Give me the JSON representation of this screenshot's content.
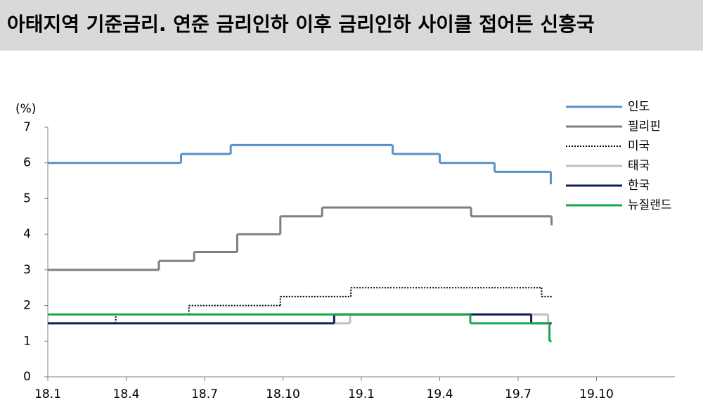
{
  "chart_data": {
    "type": "step",
    "title": "아태지역 기준금리. 연준 금리인하 이후 금리인하 사이클 접어든 신흥국",
    "y_label": "(%)",
    "xlim": [
      0,
      24
    ],
    "xticks": [
      {
        "value": 0,
        "label": "18.1"
      },
      {
        "value": 3,
        "label": "18.4"
      },
      {
        "value": 6,
        "label": "18.7"
      },
      {
        "value": 9,
        "label": "18.10"
      },
      {
        "value": 12,
        "label": "19.1"
      },
      {
        "value": 15,
        "label": "19.4"
      },
      {
        "value": 18,
        "label": "19.7"
      },
      {
        "value": 21,
        "label": "19.10"
      }
    ],
    "ylim": [
      0,
      7
    ],
    "yticks": [
      0,
      1,
      2,
      3,
      4,
      5,
      6,
      7
    ],
    "grid": false,
    "legend": "top-right",
    "series": [
      {
        "name": "인도",
        "color": "#5b8fcc",
        "x": [
          0,
          5.1,
          7,
          13.2,
          15,
          17.1,
          19.25
        ],
        "values": [
          6,
          6.25,
          6.5,
          6.25,
          6,
          5.75,
          5.4
        ]
      },
      {
        "name": "필리핀",
        "color": "#7f7f7f",
        "x": [
          0,
          4.25,
          5.6,
          7.25,
          8.9,
          10.5,
          16.2,
          19.28
        ],
        "values": [
          3,
          3.25,
          3.5,
          4,
          4.5,
          4.75,
          4.5,
          4.25
        ]
      },
      {
        "name": "미국",
        "color": "#000000",
        "style": "dotted",
        "x": [
          0,
          2.6,
          5.4,
          8.9,
          11.6,
          18.9,
          19.28
        ],
        "values": [
          1.5,
          1.75,
          2,
          2.25,
          2.5,
          2.25,
          2.25
        ]
      },
      {
        "name": "태국",
        "color": "#bfbfbf",
        "x": [
          0,
          11.57,
          19.15,
          19.28
        ],
        "values": [
          1.5,
          1.75,
          1.5,
          1.5
        ]
      },
      {
        "name": "한국",
        "color": "#0f1f5a",
        "x": [
          0,
          10.96,
          18.5,
          19.28
        ],
        "values": [
          1.5,
          1.75,
          1.5,
          1.5
        ]
      },
      {
        "name": "뉴질랜드",
        "color": "#1aa64b",
        "x": [
          0,
          16.17,
          19.2,
          19.28
        ],
        "values": [
          1.75,
          1.5,
          1,
          1
        ]
      }
    ]
  }
}
